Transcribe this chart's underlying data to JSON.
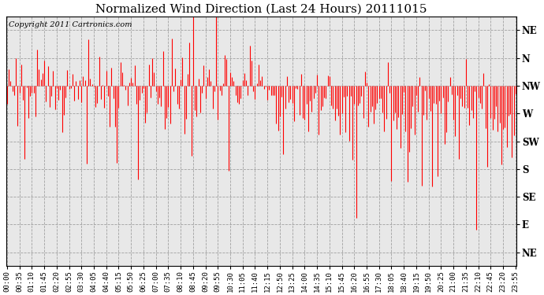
{
  "title": "Normalized Wind Direction (Last 24 Hours) 20111015",
  "copyright": "Copyright 2011 Cartronics.com",
  "ytick_labels": [
    "NE",
    "N",
    "NW",
    "W",
    "SW",
    "S",
    "SE",
    "E",
    "NE"
  ],
  "ytick_values": [
    8,
    7,
    6,
    5,
    4,
    3,
    2,
    1,
    0
  ],
  "ylim": [
    -0.5,
    8.5
  ],
  "line_color": "#ff0000",
  "bg_color": "#ffffff",
  "plot_bg_color": "#e8e8e8",
  "grid_color": "#999999",
  "title_fontsize": 11,
  "copyright_fontsize": 7,
  "tick_fontsize": 6.5,
  "ytick_fontsize": 8.5
}
